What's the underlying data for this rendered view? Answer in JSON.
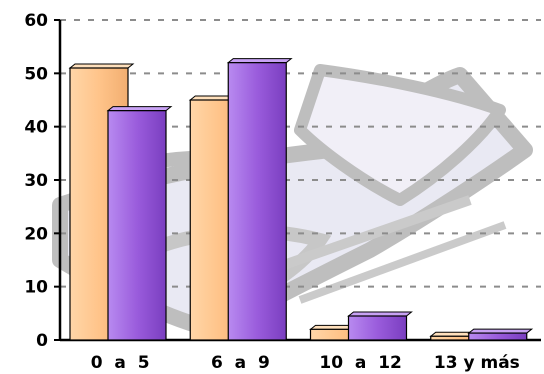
{
  "chart_data": {
    "type": "bar",
    "categories": [
      "0  a  5",
      "6  a  9",
      "10  a  12",
      "13 y más"
    ],
    "series": [
      {
        "values": [
          51,
          45,
          2,
          0.7
        ],
        "color": "#FFC890"
      },
      {
        "values": [
          43,
          52,
          4.5,
          1.3
        ],
        "color": "#A068E0"
      }
    ],
    "ylim": [
      0,
      60
    ],
    "yticks": [
      0,
      10,
      20,
      30,
      40,
      50,
      60
    ],
    "grid": true,
    "title": "",
    "xlabel": "",
    "ylabel": ""
  }
}
